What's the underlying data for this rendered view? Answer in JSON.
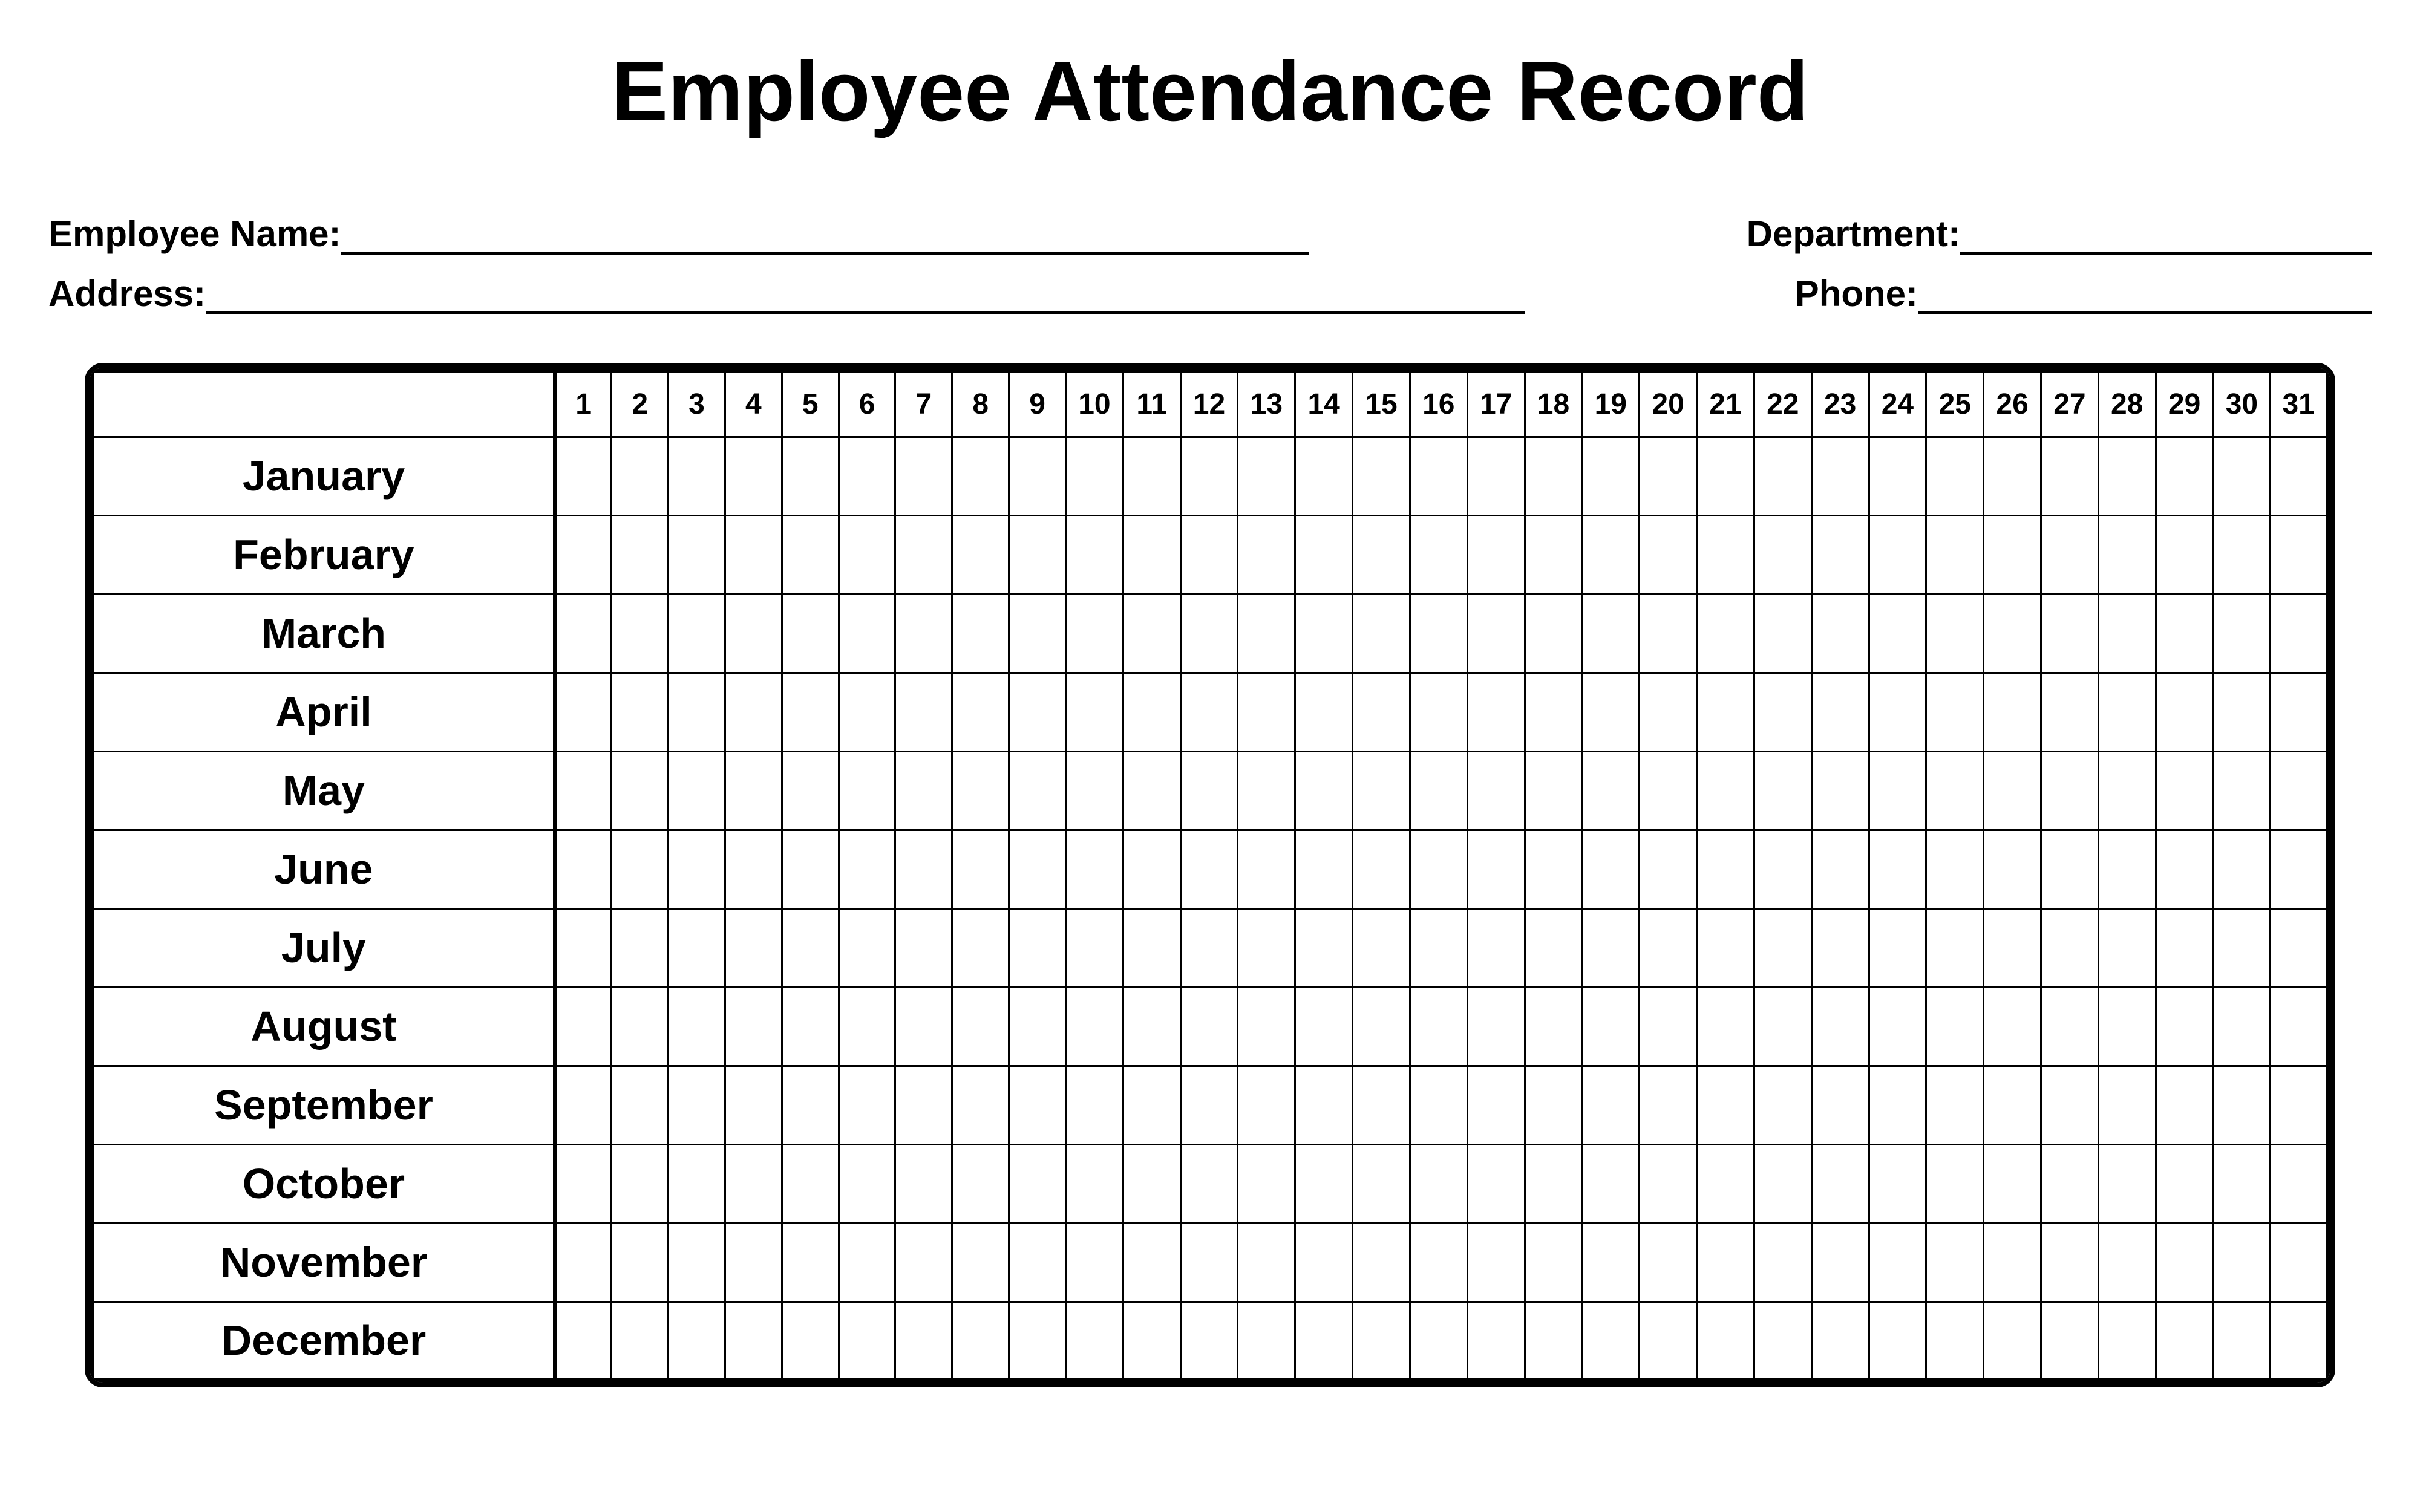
{
  "title": "Employee Attendance Record",
  "fields": {
    "employee_name_label": "Employee Name:",
    "department_label": "Department:",
    "address_label": "Address:",
    "phone_label": "Phone:"
  },
  "table": {
    "type": "table",
    "day_headers": [
      "1",
      "2",
      "3",
      "4",
      "5",
      "6",
      "7",
      "8",
      "9",
      "10",
      "11",
      "12",
      "13",
      "14",
      "15",
      "16",
      "17",
      "18",
      "19",
      "20",
      "21",
      "22",
      "23",
      "24",
      "25",
      "26",
      "27",
      "28",
      "29",
      "30",
      "31"
    ],
    "months": [
      "January",
      "February",
      "March",
      "April",
      "May",
      "June",
      "July",
      "August",
      "September",
      "October",
      "November",
      "December"
    ],
    "border_color": "#000000",
    "background_color": "#ffffff",
    "outer_border_width": 8,
    "cell_border_width": 3,
    "month_column_border_width": 6,
    "header_fontsize": 48,
    "month_fontsize": 70,
    "header_row_height": 110,
    "data_row_height": 130,
    "month_column_width": 780,
    "day_column_width": 96,
    "border_radius": 30
  },
  "styling": {
    "title_fontsize": 140,
    "title_fontweight": "bold",
    "label_fontsize": 60,
    "label_fontweight": "bold",
    "text_color": "#000000",
    "page_background": "#ffffff",
    "underline_width": 5,
    "font_family": "Arial"
  },
  "field_line_widths": {
    "employee_name": 1600,
    "department": 680,
    "address": 2180,
    "phone": 750
  }
}
